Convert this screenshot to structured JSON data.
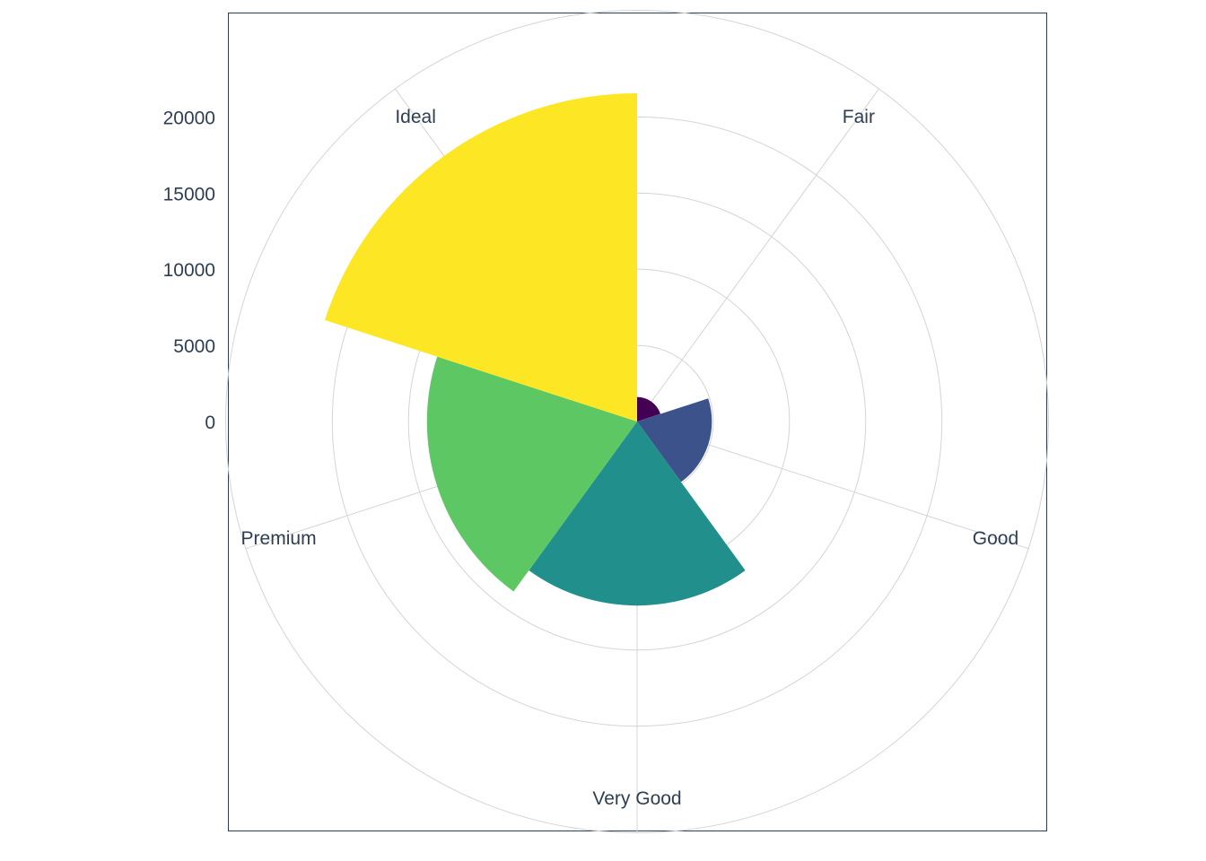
{
  "chart_data": {
    "type": "pie",
    "subtype": "polar-area",
    "title": "",
    "categories": [
      "Fair",
      "Good",
      "Very Good",
      "Premium",
      "Ideal"
    ],
    "values": [
      1610,
      4906,
      12082,
      13791,
      21551
    ],
    "colors": [
      "#440154",
      "#3b528b",
      "#21908c",
      "#5dc863",
      "#fde725"
    ],
    "r_ticks": [
      0,
      5000,
      10000,
      15000,
      20000
    ],
    "r_tick_labels": [
      "0",
      "5000",
      "10000",
      "15000",
      "20000"
    ],
    "r_lim": [
      0,
      27000
    ],
    "grid": true,
    "legend": "none"
  }
}
